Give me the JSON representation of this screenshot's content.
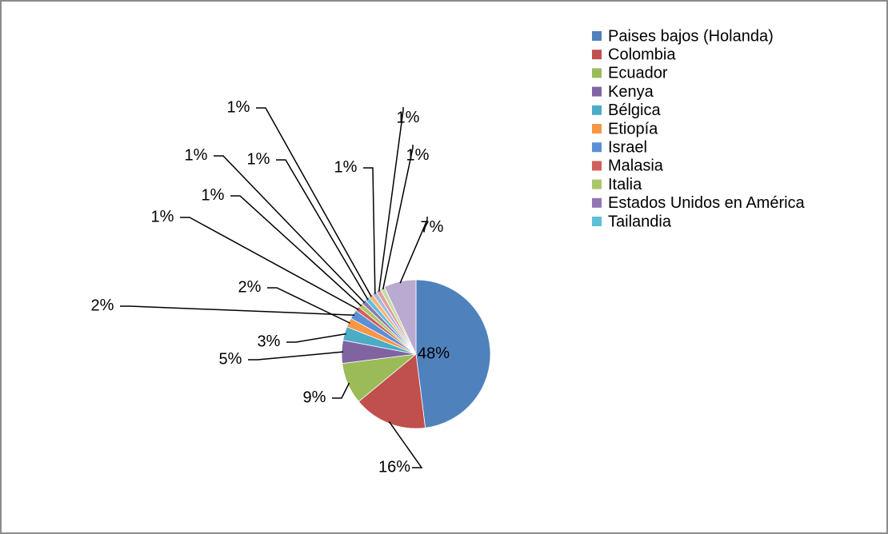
{
  "chart_data": {
    "type": "pie",
    "categories": [
      "Paises bajos (Holanda)",
      "Colombia",
      "Ecuador",
      "Kenya",
      "Bélgica",
      "Etiopía",
      "Israel",
      "Malasia",
      "Italia",
      "Estados Unidos en América",
      "Tailandia",
      null,
      null,
      null,
      null,
      null
    ],
    "values": [
      48,
      16,
      9,
      5,
      3,
      2,
      2,
      1,
      1,
      1,
      1,
      1,
      1,
      1,
      1,
      7
    ],
    "colors": [
      "#4f81bd",
      "#c0504d",
      "#9bbb59",
      "#8064a2",
      "#4bacc6",
      "#f79646",
      "#5b8fd6",
      "#d0605c",
      "#a9c86a",
      "#9077b3",
      "#5cc0d8",
      "#f9b27a",
      "#a5b9dd",
      "#dca09e",
      "#c8dba4",
      "#b8aad0"
    ],
    "legend": "right"
  }
}
